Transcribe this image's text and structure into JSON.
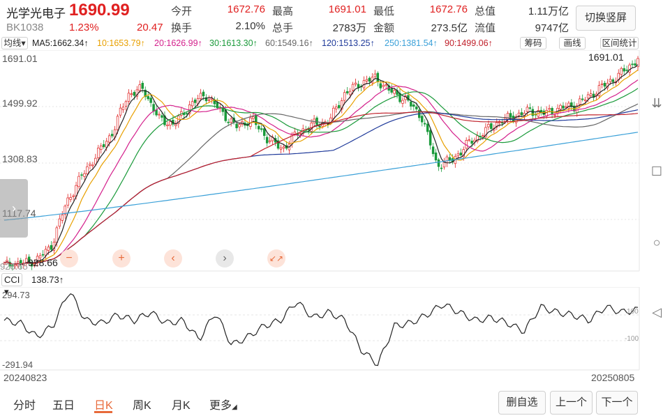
{
  "header": {
    "name": "光学光电子",
    "price": "1690.99",
    "code": "BK1038",
    "pct": "1.23%",
    "change": "20.47",
    "labels": [
      "今开",
      "最高",
      "最低",
      "总值",
      "换手",
      "总手",
      "金额",
      "流值"
    ],
    "values": [
      "1672.76",
      "1691.01",
      "1672.76",
      "1.11万亿",
      "2.10%",
      "2783万",
      "273.5亿",
      "9747亿"
    ],
    "switch_label": "切换竖屏"
  },
  "ma_bar": {
    "selector": "均线",
    "ma5": "MA5:1662.34↑",
    "ma10": "10:1653.79↑",
    "ma20": "20:1626.99↑",
    "ma30": "30:1613.30↑",
    "ma60": "60:1549.16↑",
    "ma120": "120:1513.25↑",
    "ma250": "250:1381.54↑",
    "ma90": "90:1499.06↑",
    "btn_chips": "筹码",
    "btn_draw": "画线",
    "btn_interval": "区间统计"
  },
  "main_axis": {
    "y_labels": [
      "1691.01",
      "1499.92",
      "1308.83",
      "1117.74"
    ],
    "high_label": "1691.01",
    "low_label": "928.66",
    "low_edge": "926.65"
  },
  "controls": [
    "−",
    "+",
    "‹",
    "›",
    "↙↗"
  ],
  "cci": {
    "selector": "CCI",
    "value": "138.73↑",
    "top": "294.73",
    "bottom": "-291.94",
    "level_100": "100",
    "level_m100": "-100"
  },
  "dates": {
    "start": "20240823",
    "end": "20250805"
  },
  "tabs": [
    "分时",
    "五日",
    "日K",
    "周K",
    "月K",
    "更多"
  ],
  "active_tab": "日K",
  "buttons": {
    "delete": "删自选",
    "prev": "上一个",
    "next": "下一个"
  },
  "colors": {
    "up": "#e02020",
    "down": "#1a9a3a",
    "accent": "#e86a3a"
  },
  "chart_data": {
    "type": "candlestick",
    "title": "",
    "ylim": [
      926.65,
      1691.01
    ],
    "x_range": [
      "20240823",
      "20250805"
    ],
    "close_path": [
      935,
      940,
      950,
      1000,
      1160,
      1260,
      1340,
      1420,
      1560,
      1580,
      1470,
      1450,
      1520,
      1560,
      1500,
      1440,
      1470,
      1400,
      1360,
      1420,
      1450,
      1460,
      1560,
      1600,
      1620,
      1570,
      1540,
      1480,
      1300,
      1320,
      1380,
      1420,
      1460,
      1480,
      1500,
      1490,
      1510,
      1520,
      1560,
      1600,
      1640,
      1691
    ],
    "ma_lines": {
      "ma5": 1662.34,
      "ma10": 1653.79,
      "ma20": 1626.99,
      "ma30": 1613.3,
      "ma60": 1549.16,
      "ma120": 1513.25,
      "ma250": 1381.54,
      "ma90": 1499.06
    },
    "cci_path": [
      60,
      40,
      -60,
      20,
      280,
      60,
      40,
      100,
      60,
      120,
      40,
      60,
      -80,
      120,
      -120,
      -60,
      20,
      60,
      200,
      80,
      120,
      60,
      -160,
      -260,
      20,
      40,
      100,
      180,
      120,
      60,
      80,
      40,
      -20,
      160,
      120,
      100,
      60,
      160,
      120,
      138.73
    ]
  }
}
